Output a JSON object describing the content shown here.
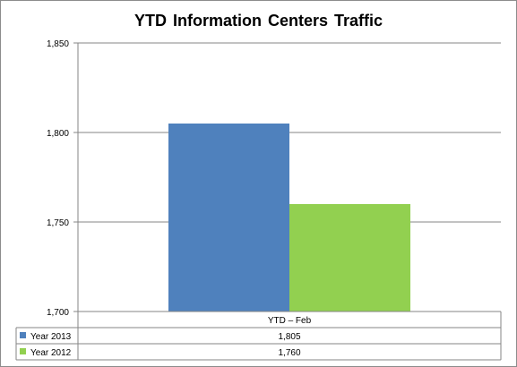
{
  "chart_data": {
    "type": "bar",
    "title": "YTD Information  Centers Traffic",
    "categories": [
      "YTD – Feb"
    ],
    "series": [
      {
        "name": "Year 2013",
        "values": [
          1805
        ],
        "color": "#4f81bd"
      },
      {
        "name": "Year 2012",
        "values": [
          1760
        ],
        "color": "#92d050"
      }
    ],
    "value_labels": [
      [
        "1,805"
      ],
      [
        "1,760"
      ]
    ],
    "yticks": [
      1700,
      1750,
      1800,
      1850
    ],
    "ytick_labels": [
      "1,700",
      "1,750",
      "1,800",
      "1,850"
    ],
    "ylim": [
      1700,
      1850
    ],
    "grid": true,
    "legend": "data-table"
  }
}
